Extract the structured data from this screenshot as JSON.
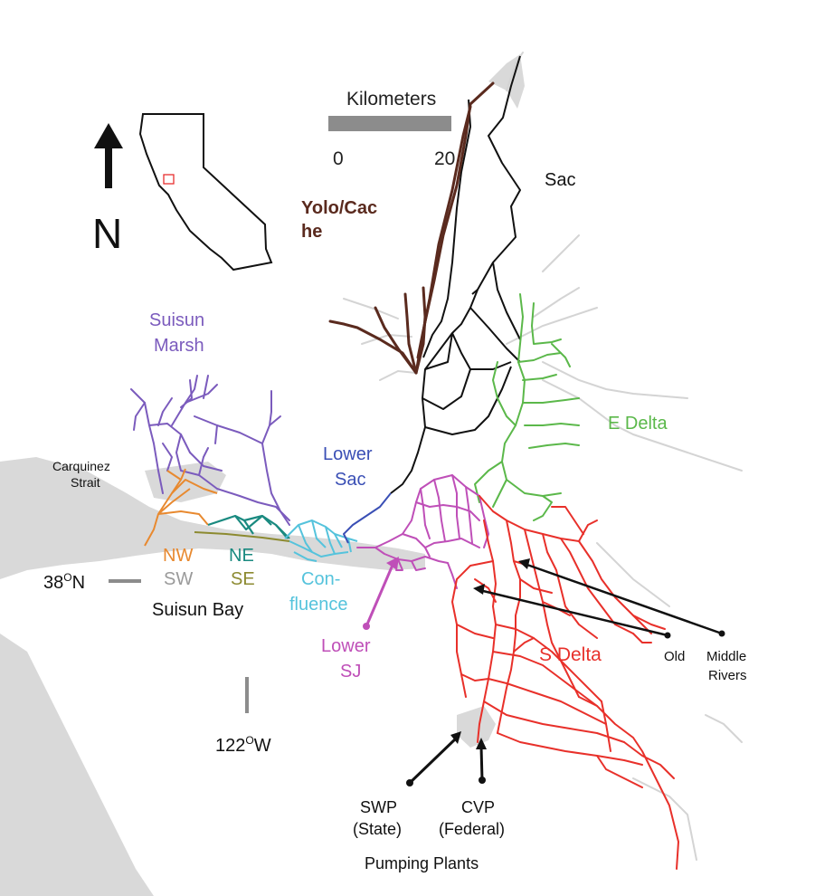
{
  "scale_bar": {
    "title": "Kilometers",
    "start": "0",
    "end": "20"
  },
  "north_arrow": {
    "letter": "N"
  },
  "coordinates": {
    "latitude": "38",
    "latitude_hemisphere": "N",
    "longitude": "122",
    "longitude_hemisphere": "W",
    "degree_symbol": "O"
  },
  "regions": {
    "yolo_line1": "Yolo/Cac",
    "yolo_line2": "he",
    "sac": "Sac",
    "suisun_line1": "Suisun",
    "suisun_line2": "Marsh",
    "carquinez_line1": "Carquinez",
    "carquinez_line2": "Strait",
    "lower_sac_line1": "Lower",
    "lower_sac_line2": "Sac",
    "e_delta": "E Delta",
    "nw": "NW",
    "ne": "NE",
    "sw": "SW",
    "se": "SE",
    "suisun_bay": "Suisun Bay",
    "confluence_line1": "Con-",
    "confluence_line2": "fluence",
    "lower_sj_line1": "Lower",
    "lower_sj_line2": "SJ",
    "s_delta": "S Delta",
    "old": "Old",
    "middle": "Middle",
    "rivers": "Rivers"
  },
  "pumping": {
    "swp_line1": "SWP",
    "swp_line2": "(State)",
    "cvp_line1": "CVP",
    "cvp_line2": "(Federal)",
    "caption": "Pumping Plants"
  },
  "colors": {
    "yolo": "#5a2a1e",
    "sac": "#111111",
    "suisun": "#7b5bbd",
    "lower_sac": "#3a4fb5",
    "e_delta": "#5bb84a",
    "nw": "#e8892f",
    "ne": "#1a8a80",
    "sw": "#9a9a9a",
    "se": "#8c8a30",
    "confluence": "#55c3dc",
    "lower_sj": "#bf4fb8",
    "s_delta": "#e8302a",
    "water": "#d9d9d9"
  }
}
